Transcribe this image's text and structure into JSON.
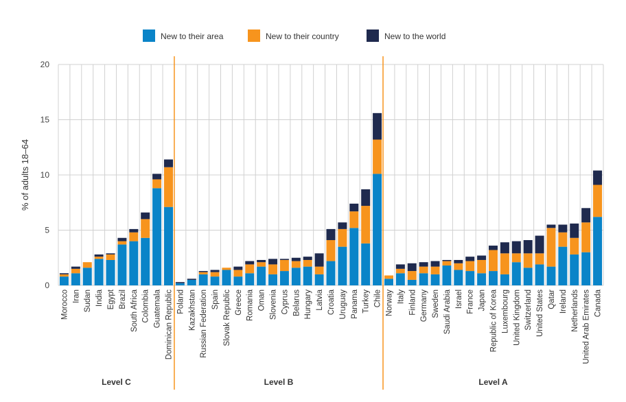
{
  "chart_data": {
    "type": "bar",
    "stacked": true,
    "title": "",
    "ylabel": "% of adults 18–64",
    "xlabel": "",
    "ylim": [
      0,
      20
    ],
    "yticks": [
      0,
      5,
      10,
      15,
      20
    ],
    "grid": true,
    "legend_position": "top-center",
    "series": [
      {
        "name": "New to their area",
        "color": "#0a84c8",
        "values": [
          0.8,
          1.1,
          1.6,
          2.4,
          2.3,
          3.7,
          4.0,
          4.3,
          8.8,
          7.1,
          0.2,
          0.5,
          1.0,
          0.8,
          1.4,
          0.8,
          1.1,
          1.7,
          1.0,
          1.3,
          1.6,
          1.7,
          1.0,
          2.2,
          3.5,
          5.2,
          3.8,
          10.1,
          0.6,
          1.1,
          0.5,
          1.1,
          1.0,
          1.8,
          1.4,
          1.3,
          1.1,
          1.3,
          1.0,
          2.1,
          1.6,
          1.9,
          1.7,
          3.5,
          2.8,
          3.0,
          6.2
        ]
      },
      {
        "name": "New to their country",
        "color": "#f7941d",
        "values": [
          0.2,
          0.4,
          0.5,
          0.2,
          0.5,
          0.3,
          0.8,
          1.7,
          0.8,
          3.6,
          0.0,
          0.0,
          0.2,
          0.4,
          0.2,
          0.6,
          0.8,
          0.4,
          0.9,
          1.0,
          0.6,
          0.6,
          0.7,
          1.9,
          1.6,
          1.5,
          3.4,
          3.1,
          0.3,
          0.4,
          0.8,
          0.6,
          0.7,
          0.4,
          0.6,
          0.9,
          1.2,
          1.9,
          1.9,
          0.8,
          1.3,
          1.0,
          3.5,
          1.3,
          1.5,
          2.7,
          2.9
        ]
      },
      {
        "name": "New to the world",
        "color": "#1f2a4e",
        "values": [
          0.1,
          0.2,
          0.0,
          0.2,
          0.1,
          0.3,
          0.3,
          0.6,
          0.5,
          0.7,
          0.1,
          0.1,
          0.1,
          0.2,
          0.0,
          0.3,
          0.3,
          0.2,
          0.5,
          0.1,
          0.3,
          0.3,
          1.2,
          1.0,
          0.6,
          0.7,
          1.5,
          2.4,
          0.0,
          0.4,
          0.7,
          0.4,
          0.5,
          0.1,
          0.3,
          0.4,
          0.4,
          0.4,
          1.0,
          1.1,
          1.2,
          1.6,
          0.3,
          0.7,
          1.3,
          1.3,
          1.3
        ]
      }
    ],
    "categories": [
      "Morocco",
      "Iran",
      "Sudan",
      "India",
      "Egypt",
      "Brazil",
      "South Africa",
      "Colombia",
      "Guatemala",
      "Dominican Republic",
      "Poland",
      "Kazakhstan",
      "Russian Federation",
      "Spain",
      "Slovak Republic",
      "Greece",
      "Romania",
      "Oman",
      "Slovenia",
      "Cyprus",
      "Belarus",
      "Hungary",
      "Latvia",
      "Croatia",
      "Uruguay",
      "Panama",
      "Turkey",
      "Chile",
      "Norway",
      "Italy",
      "Finland",
      "Germany",
      "Sweden",
      "Saudi Arabia",
      "Israel",
      "France",
      "Japan",
      "Republic of Korea",
      "Luxembourg",
      "United Kingdom",
      "Switzerland",
      "United States",
      "Qatar",
      "Ireland",
      "Netherlands",
      "United Arab Emirates",
      "Canada"
    ],
    "groups": [
      {
        "label": "Level C",
        "start": 0,
        "end": 9
      },
      {
        "label": "Level B",
        "start": 10,
        "end": 27
      },
      {
        "label": "Level A",
        "start": 28,
        "end": 46
      }
    ],
    "colors": {
      "grid": "#d0d0d0",
      "divider": "#f7941d",
      "axis": "#bbbbbb"
    }
  }
}
